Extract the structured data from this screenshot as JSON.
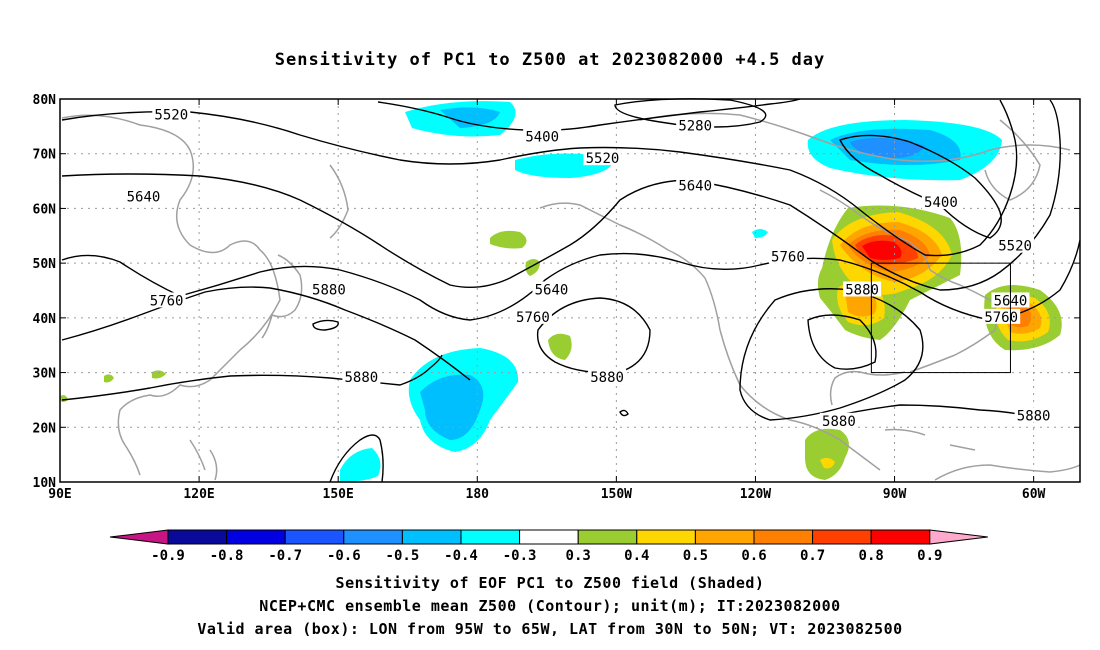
{
  "title": "Sensitivity of PC1 to Z500 at 2023082000 +4.5 day",
  "captions": [
    "Sensitivity of EOF PC1 to Z500 field (Shaded)",
    "NCEP+CMC ensemble mean Z500 (Contour); unit(m); IT:2023082000",
    "Valid area (box): LON from 95W to 65W, LAT from 30N to 50N; VT: 2023082500"
  ],
  "map": {
    "lon_range": [
      90,
      310
    ],
    "lat_range": [
      10,
      80
    ],
    "lon_ticks": [
      {
        "lon": 90,
        "label": "90E"
      },
      {
        "lon": 120,
        "label": "120E"
      },
      {
        "lon": 150,
        "label": "150E"
      },
      {
        "lon": 180,
        "label": "180"
      },
      {
        "lon": 210,
        "label": "150W"
      },
      {
        "lon": 240,
        "label": "120W"
      },
      {
        "lon": 270,
        "label": "90W"
      },
      {
        "lon": 300,
        "label": "60W"
      }
    ],
    "lat_ticks": [
      {
        "lat": 10,
        "label": "10N"
      },
      {
        "lat": 20,
        "label": "20N"
      },
      {
        "lat": 30,
        "label": "30N"
      },
      {
        "lat": 40,
        "label": "40N"
      },
      {
        "lat": 50,
        "label": "50N"
      },
      {
        "lat": 60,
        "label": "60N"
      },
      {
        "lat": 70,
        "label": "70N"
      },
      {
        "lat": 80,
        "label": "80N"
      }
    ],
    "grid": true,
    "valid_box": {
      "lon": [
        265,
        295
      ],
      "lat": [
        30,
        50
      ]
    },
    "contour_labels": [
      {
        "text": "5520",
        "lon": 114,
        "lat": 77
      },
      {
        "text": "5400",
        "lon": 194,
        "lat": 73
      },
      {
        "text": "5280",
        "lon": 227,
        "lat": 75
      },
      {
        "text": "5520",
        "lon": 207,
        "lat": 69
      },
      {
        "text": "5640",
        "lon": 108,
        "lat": 62
      },
      {
        "text": "5640",
        "lon": 227,
        "lat": 64
      },
      {
        "text": "5400",
        "lon": 280,
        "lat": 61
      },
      {
        "text": "5520",
        "lon": 296,
        "lat": 53
      },
      {
        "text": "5760",
        "lon": 247,
        "lat": 51
      },
      {
        "text": "5640",
        "lon": 196,
        "lat": 45
      },
      {
        "text": "5640",
        "lon": 295,
        "lat": 43
      },
      {
        "text": "5760",
        "lon": 113,
        "lat": 43
      },
      {
        "text": "5880",
        "lon": 148,
        "lat": 45
      },
      {
        "text": "5880",
        "lon": 263,
        "lat": 45
      },
      {
        "text": "5760",
        "lon": 192,
        "lat": 40
      },
      {
        "text": "5760",
        "lon": 293,
        "lat": 40
      },
      {
        "text": "5880",
        "lon": 208,
        "lat": 29
      },
      {
        "text": "5880",
        "lon": 155,
        "lat": 29
      },
      {
        "text": "5880",
        "lon": 258,
        "lat": 21
      },
      {
        "text": "5880",
        "lon": 300,
        "lat": 22
      }
    ]
  },
  "colorbar": {
    "labels": [
      "-0.9",
      "-0.8",
      "-0.7",
      "-0.6",
      "-0.5",
      "-0.4",
      "-0.3",
      "0.3",
      "0.4",
      "0.5",
      "0.6",
      "0.7",
      "0.8",
      "0.9"
    ],
    "colors": [
      "#0a0a9a",
      "#0000e0",
      "#1a55ff",
      "#1e90ff",
      "#00bfff",
      "#00ffff",
      "#ffffff",
      "#9acd32",
      "#ffd700",
      "#ffa500",
      "#ff7f00",
      "#ff4000",
      "#ff0000"
    ],
    "low_end_color": "#c71585",
    "high_end_color": "#ffaacc"
  }
}
